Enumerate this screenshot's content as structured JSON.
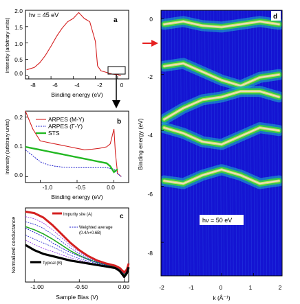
{
  "panels": {
    "a": {
      "letter": "a",
      "annotation": "hν = 45 eV",
      "xlabel": "Binding energy (eV)",
      "ylabel": "Intensity (arbitrary units)",
      "xticks": [
        "-8",
        "-6",
        "-4",
        "-2",
        "0"
      ],
      "yticks": [
        "0.0",
        "0.5",
        "1.0",
        "1.5",
        "2.0"
      ]
    },
    "b": {
      "letter": "b",
      "xlabel": "Binding energy (eV)",
      "ylabel": "Intensity (arbitrary units)",
      "xticks": [
        "-1.0",
        "-0.5",
        "0.0"
      ],
      "yticks": [
        "0.0",
        "0.1",
        "0.2"
      ],
      "legend": [
        "ARPES (M-Y)",
        "ARPES (Γ-Y)",
        "STS"
      ]
    },
    "c": {
      "letter": "c",
      "xlabel": "Sample Bias (V)",
      "ylabel": "Normalized conductance",
      "xticks": [
        "-1.00",
        "-0.50",
        "0.00"
      ],
      "legend_impurity": "Impurity site (A)",
      "legend_weighted_1": "Weighted average",
      "legend_weighted_2": "(0.4A+0.6B)",
      "legend_typical": "Typical (B)"
    },
    "d": {
      "letter": "d",
      "annotation": "hν = 50 eV",
      "xlabel": "k (Å⁻¹)",
      "ylabel": "Binding energy (eV)",
      "xticks": [
        "-2",
        "-1",
        "0",
        "1",
        "2"
      ],
      "yticks": [
        "0",
        "-2",
        "-4",
        "-6",
        "-8"
      ]
    }
  },
  "colors": {
    "red": "#d42020",
    "blue": "#1a1acc",
    "green": "#22b822",
    "map_bg": "#1414d2"
  },
  "chart_data": [
    {
      "panel": "a",
      "type": "line",
      "xlim": [
        -8.3,
        1.0
      ],
      "ylim": [
        -0.1,
        2.0
      ],
      "series": [
        {
          "x": [
            -8.2,
            -7.5,
            -7.0,
            -6.5,
            -6.0,
            -5.5,
            -5.0,
            -4.5,
            -4.0,
            -3.5,
            -3.0,
            -2.5,
            -2.0,
            -1.8,
            -1.5,
            -1.0,
            -0.5,
            0.0,
            0.3
          ],
          "y": [
            0.18,
            0.25,
            0.4,
            0.62,
            0.9,
            1.2,
            1.45,
            1.65,
            1.75,
            1.93,
            1.75,
            1.65,
            1.05,
            0.3,
            0.15,
            0.1,
            0.05,
            0.03,
            0.0
          ]
        }
      ]
    },
    {
      "panel": "b",
      "type": "line",
      "xlim": [
        -1.2,
        0.2
      ],
      "ylim": [
        -0.02,
        0.22
      ],
      "series": [
        {
          "name": "ARPES (M-Y)",
          "x": [
            -1.2,
            -1.1,
            -1.0,
            -0.9,
            -0.8,
            -0.7,
            -0.6,
            -0.5,
            -0.4,
            -0.3,
            -0.2,
            -0.1,
            -0.05,
            0.0,
            0.02,
            0.05,
            0.1
          ],
          "y": [
            0.22,
            0.16,
            0.12,
            0.115,
            0.11,
            0.105,
            0.1,
            0.095,
            0.09,
            0.092,
            0.095,
            0.1,
            0.11,
            0.16,
            0.08,
            0.01,
            0.0
          ]
        },
        {
          "name": "ARPES (Γ-Y)",
          "x": [
            -1.2,
            -1.1,
            -1.0,
            -0.9,
            -0.8,
            -0.7,
            -0.6,
            -0.5,
            -0.4,
            -0.3,
            -0.2,
            -0.1,
            0.0,
            0.05,
            0.1
          ],
          "y": [
            0.09,
            0.07,
            0.05,
            0.04,
            0.035,
            0.032,
            0.031,
            0.03,
            0.03,
            0.03,
            0.03,
            0.03,
            0.025,
            0.01,
            0.0
          ]
        },
        {
          "name": "STS",
          "x": [
            -1.2,
            -1.1,
            -1.0,
            -0.9,
            -0.8,
            -0.7,
            -0.6,
            -0.5,
            -0.4,
            -0.3,
            -0.2,
            -0.1,
            -0.05,
            0.0,
            0.05
          ],
          "y": [
            0.1,
            0.095,
            0.09,
            0.085,
            0.08,
            0.075,
            0.07,
            0.065,
            0.06,
            0.055,
            0.05,
            0.045,
            0.035,
            0.015,
            0.025
          ]
        }
      ]
    },
    {
      "panel": "c",
      "type": "line",
      "xlim": [
        -1.1,
        0.05
      ],
      "series": [
        {
          "name": "Impurity site (A)",
          "x": [
            -1.1,
            -1.0,
            -0.9,
            -0.8,
            -0.7,
            -0.6,
            -0.5,
            -0.4,
            -0.3,
            -0.2,
            -0.1,
            -0.05,
            0.0,
            0.03,
            0.05
          ],
          "y": [
            1.0,
            0.98,
            0.92,
            0.82,
            0.7,
            0.58,
            0.48,
            0.4,
            0.34,
            0.3,
            0.27,
            0.24,
            0.18,
            0.22,
            0.3
          ]
        },
        {
          "name": "Weighted average (0.4A+0.6B)",
          "x": [
            -1.1,
            -1.0,
            -0.9,
            -0.8,
            -0.7,
            -0.6,
            -0.5,
            -0.4,
            -0.3,
            -0.2,
            -0.1,
            -0.05,
            0.0,
            0.03,
            0.05
          ],
          "y": [
            0.78,
            0.72,
            0.66,
            0.58,
            0.51,
            0.45,
            0.4,
            0.35,
            0.31,
            0.28,
            0.25,
            0.22,
            0.16,
            0.2,
            0.28
          ]
        },
        {
          "name": "Typical (B)",
          "x": [
            -1.1,
            -1.0,
            -0.9,
            -0.8,
            -0.7,
            -0.6,
            -0.5,
            -0.4,
            -0.3,
            -0.2,
            -0.1,
            -0.05,
            0.0,
            0.03,
            0.05
          ],
          "y": [
            0.55,
            0.48,
            0.43,
            0.4,
            0.37,
            0.34,
            0.32,
            0.3,
            0.28,
            0.26,
            0.24,
            0.2,
            0.12,
            0.17,
            0.25
          ]
        }
      ]
    },
    {
      "panel": "d",
      "type": "heatmap",
      "xlim": [
        -1.9,
        1.9
      ],
      "ylim": [
        -9.2,
        0.3
      ],
      "bands": [
        {
          "x": [
            -1.8,
            -1.2,
            -0.6,
            0.0,
            0.6,
            1.2,
            1.8
          ],
          "y": [
            -0.2,
            -0.1,
            -0.25,
            -0.3,
            -0.2,
            -0.1,
            -0.2
          ]
        },
        {
          "x": [
            -1.8,
            -1.2,
            -0.6,
            0.0,
            0.6,
            1.2,
            1.8
          ],
          "y": [
            -1.7,
            -1.6,
            -1.9,
            -2.2,
            -2.4,
            -2.1,
            -2.0
          ]
        },
        {
          "x": [
            -1.8,
            -1.2,
            -0.6,
            0.0,
            0.6,
            1.2,
            1.8
          ],
          "y": [
            -3.6,
            -3.2,
            -2.9,
            -2.8,
            -2.6,
            -2.6,
            -2.8
          ]
        },
        {
          "x": [
            -1.8,
            -1.2,
            -0.6,
            0.0,
            0.6,
            1.2,
            1.8
          ],
          "y": [
            -3.9,
            -4.1,
            -4.4,
            -4.5,
            -4.2,
            -3.9,
            -4.0
          ]
        },
        {
          "x": [
            -1.8,
            -1.2,
            -0.6,
            0.0,
            0.6,
            1.2,
            1.8
          ],
          "y": [
            -5.8,
            -5.9,
            -5.6,
            -5.4,
            -5.6,
            -5.9,
            -5.8
          ]
        }
      ]
    }
  ]
}
